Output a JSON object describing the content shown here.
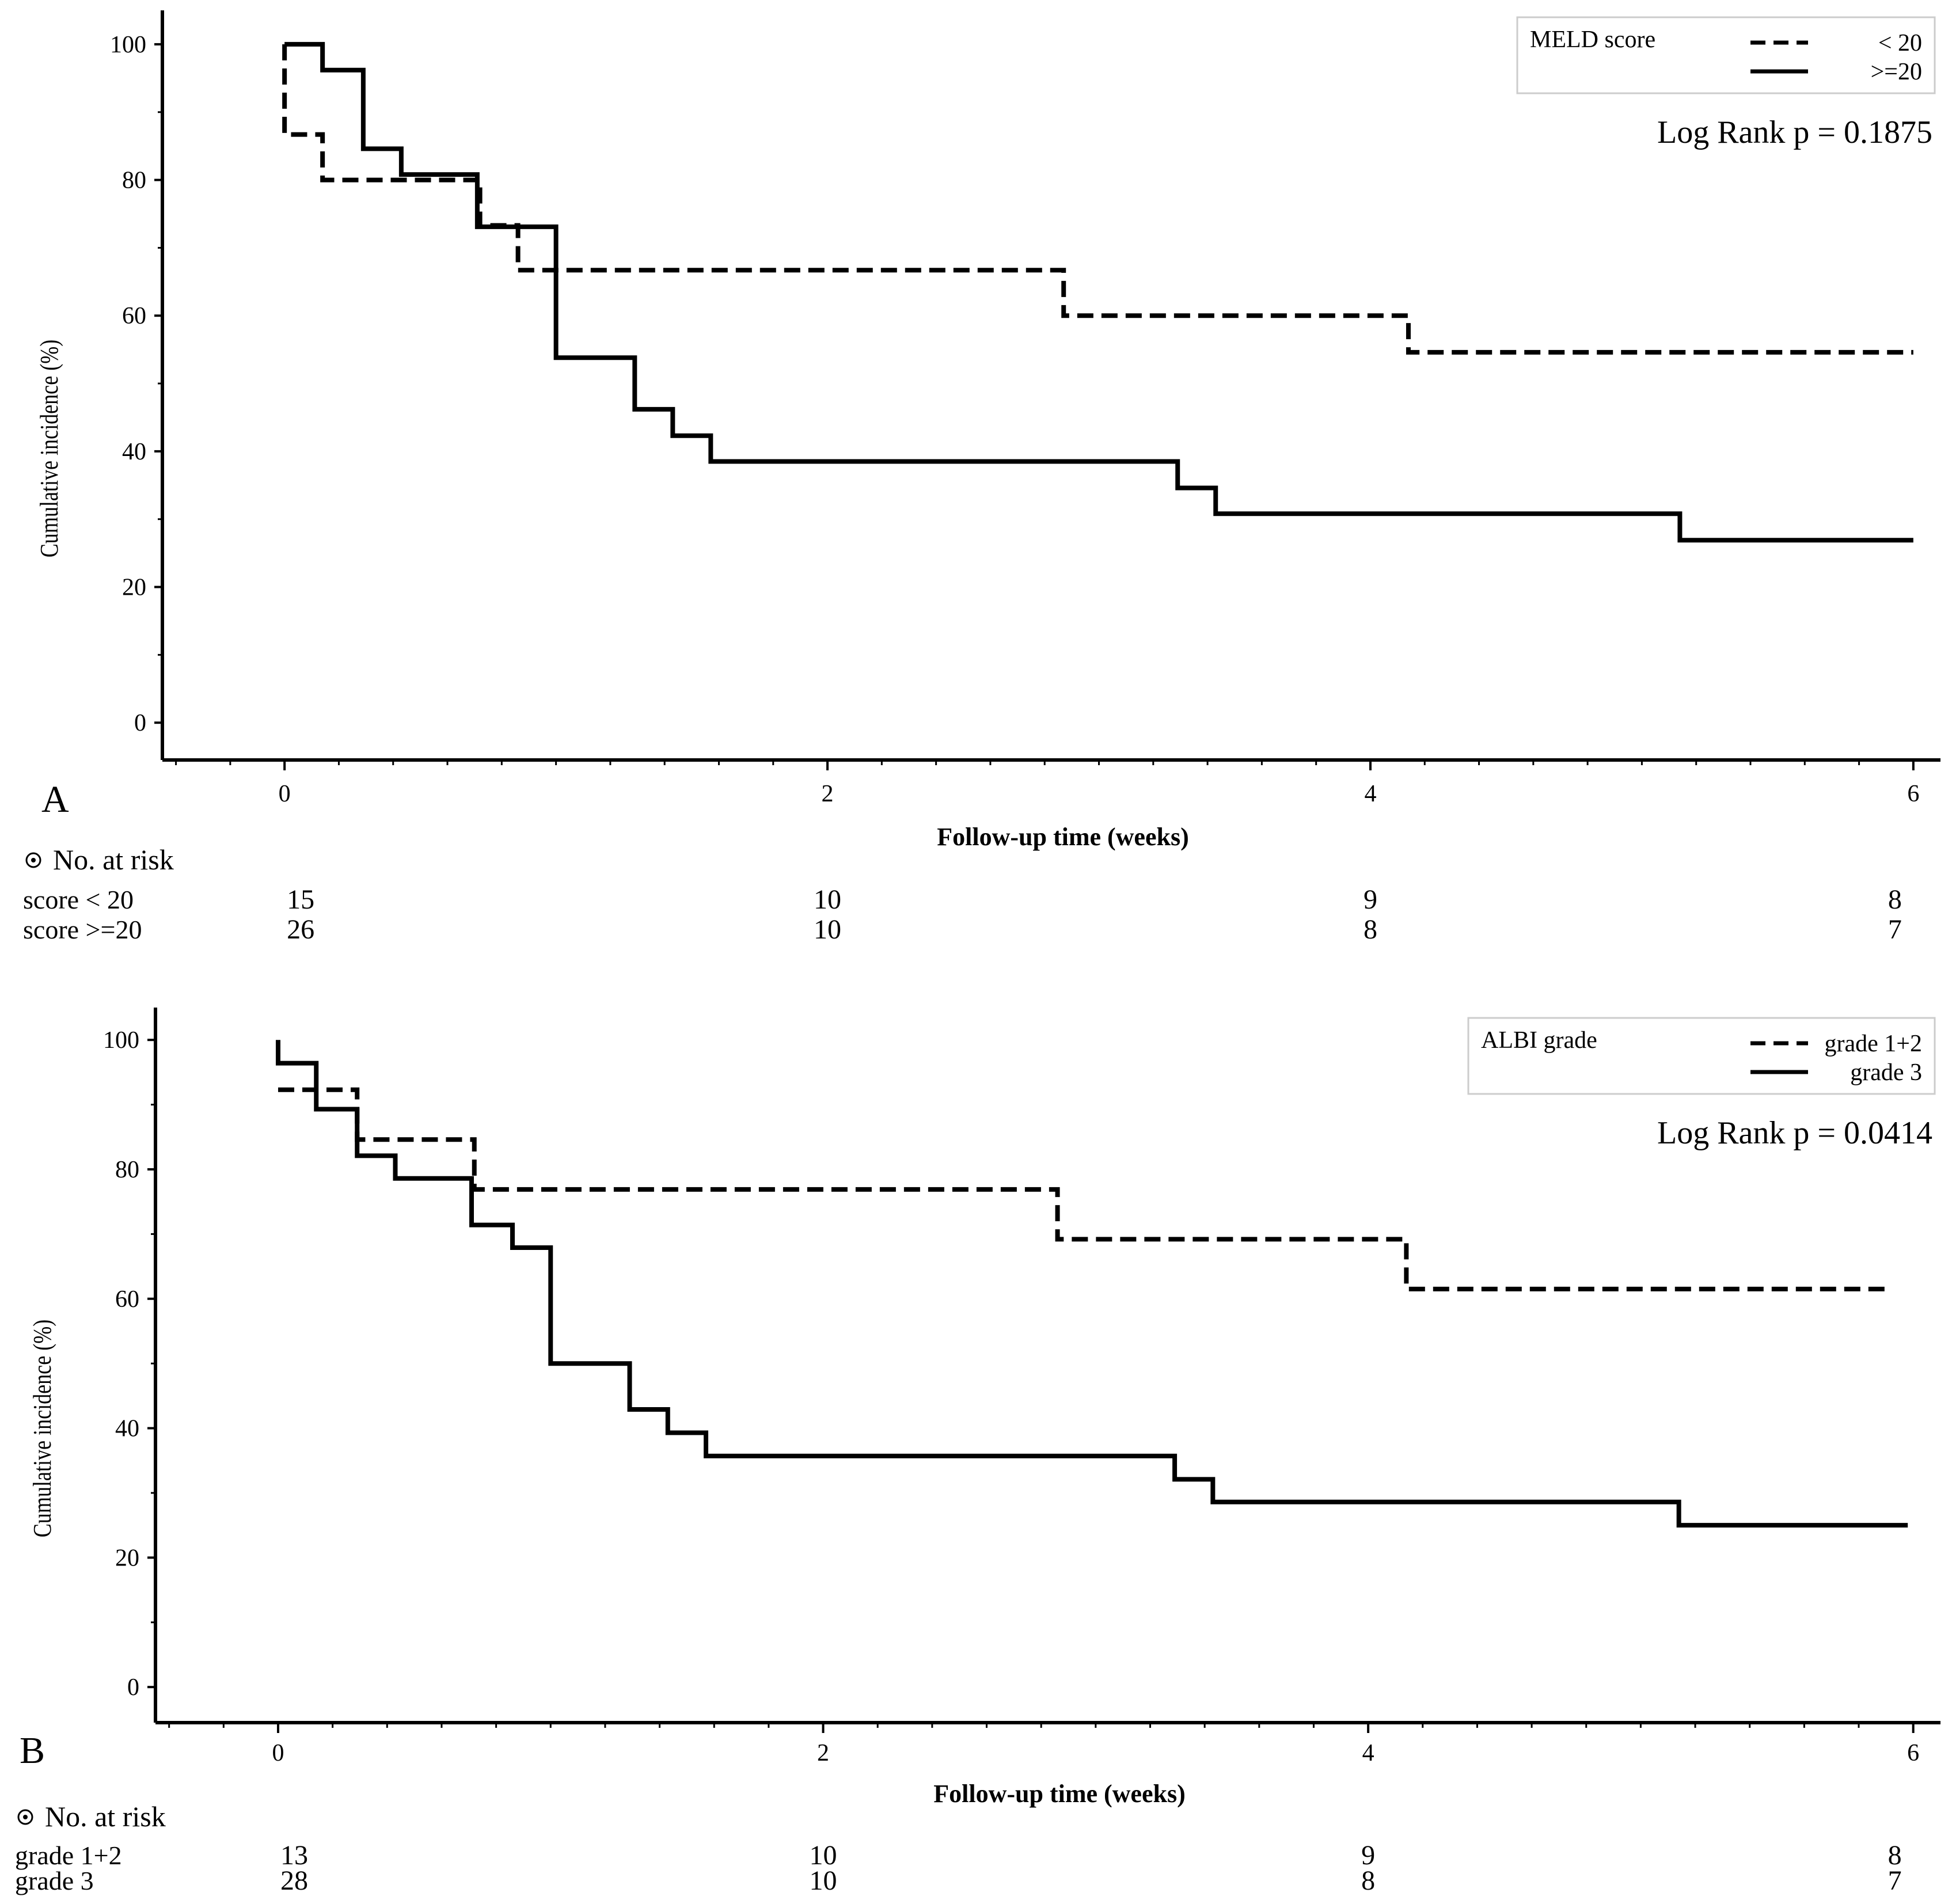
{
  "chart_data": [
    {
      "type": "line",
      "subtype": "kaplan-meier-step",
      "panel_label": "A",
      "xlabel": "Follow-up time (weeks)",
      "ylabel": "Cumulative incidence (%)",
      "xlim": [
        -0.45,
        6.1
      ],
      "ylim": [
        -5.5,
        105
      ],
      "x_ticks": [
        "0",
        "2",
        "4",
        "6"
      ],
      "y_ticks": [
        "0",
        "20",
        "40",
        "60",
        "80",
        "100"
      ],
      "legend": {
        "title": "MELD score",
        "placement": "top-right"
      },
      "annotation": "Log Rank  p = 0.1875",
      "series": [
        {
          "name": "< 20",
          "style": "dashed",
          "x": [
            0,
            0.14,
            0.72,
            0.86,
            2.87,
            4.14,
            6
          ],
          "y": [
            86.7,
            80,
            73.3,
            66.7,
            60,
            54.6,
            54.6
          ]
        },
        {
          "name": ">=20",
          "style": "solid",
          "x": [
            0,
            0.14,
            0.29,
            0.43,
            0.71,
            1.0,
            1.29,
            1.43,
            1.57,
            3.29,
            3.43,
            5.14,
            6
          ],
          "y": [
            100,
            96.2,
            84.6,
            80.8,
            73.1,
            53.8,
            46.2,
            42.3,
            38.5,
            34.6,
            30.8,
            26.9,
            26.9
          ]
        }
      ],
      "risk_table": {
        "heading": "No. at risk",
        "times": [
          0,
          2,
          4,
          6
        ],
        "rows": [
          {
            "label": "score < 20",
            "values": [
              "15",
              "10",
              "9",
              "8"
            ]
          },
          {
            "label": "score >=20",
            "values": [
              "26",
              "10",
              "8",
              "7"
            ]
          }
        ]
      }
    },
    {
      "type": "line",
      "subtype": "kaplan-meier-step",
      "panel_label": "B",
      "xlabel": "Follow-up time (weeks)",
      "ylabel": "Cumulative incidence (%)",
      "xlim": [
        -0.45,
        6.1
      ],
      "ylim": [
        -5.5,
        105
      ],
      "x_ticks": [
        "0",
        "2",
        "4",
        "6"
      ],
      "y_ticks": [
        "0",
        "20",
        "40",
        "60",
        "80",
        "100"
      ],
      "legend": {
        "title": "ALBI grade",
        "placement": "top-right"
      },
      "annotation": "Log Rank  p = 0.0414",
      "series": [
        {
          "name": "grade 1+2",
          "style": "dashed",
          "x": [
            0,
            0.29,
            0.72,
            2.86,
            4.14,
            5.9
          ],
          "y": [
            92.3,
            84.6,
            76.9,
            69.2,
            61.5,
            61.5
          ]
        },
        {
          "name": "grade 3",
          "style": "solid",
          "x": [
            0,
            0.14,
            0.29,
            0.43,
            0.71,
            0.86,
            1.0,
            1.29,
            1.43,
            1.57,
            3.29,
            3.43,
            5.14,
            5.98
          ],
          "y": [
            96.4,
            89.3,
            82.1,
            78.6,
            71.4,
            67.9,
            50,
            42.9,
            39.3,
            35.7,
            32.1,
            28.6,
            25,
            25
          ]
        }
      ],
      "risk_table": {
        "heading": "No. at risk",
        "times": [
          0,
          2,
          4,
          6
        ],
        "rows": [
          {
            "label": "grade 1+2",
            "values": [
              "13",
              "10",
              "9",
              "8"
            ]
          },
          {
            "label": "grade 3",
            "values": [
              "28",
              "10",
              "8",
              "7"
            ]
          }
        ]
      }
    }
  ]
}
